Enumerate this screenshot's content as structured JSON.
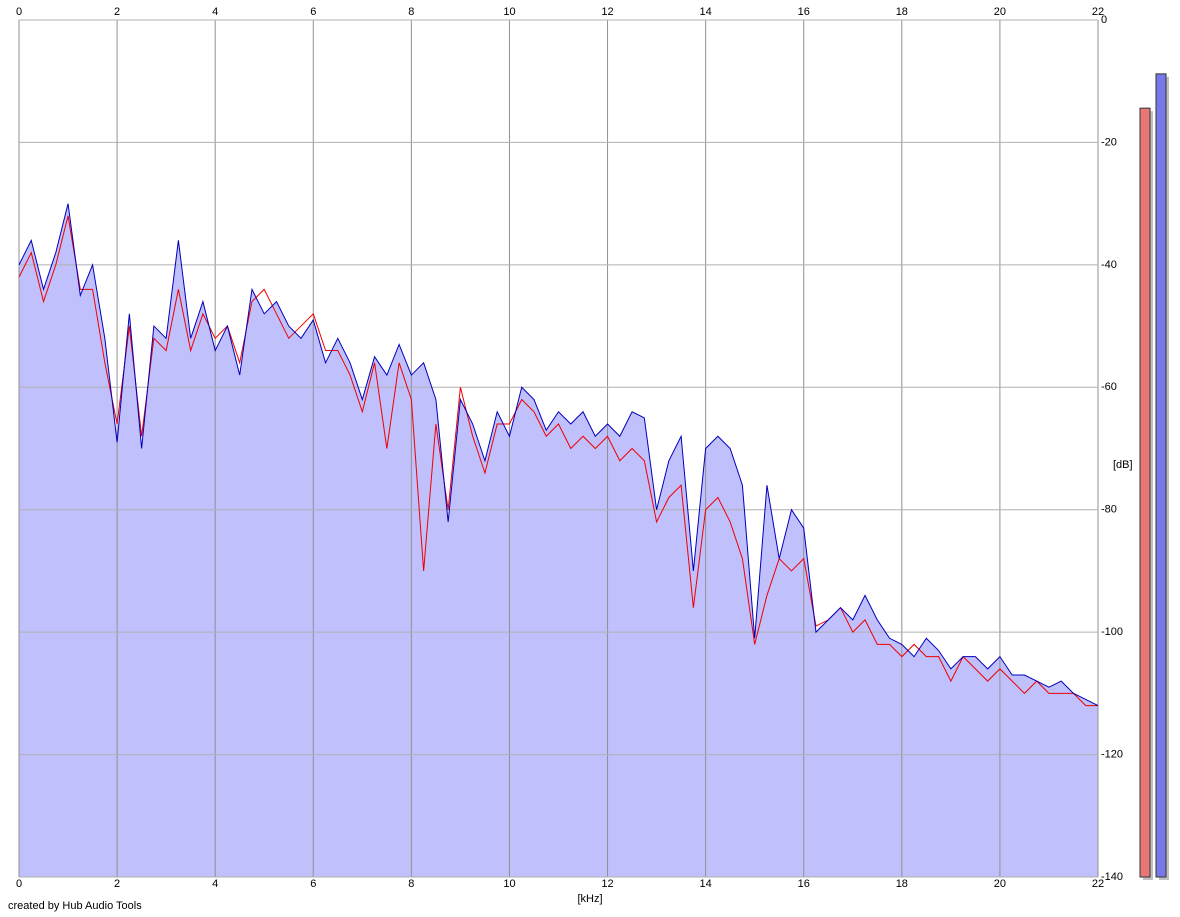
{
  "chart_data": {
    "type": "spectrum",
    "xlabel": "[kHz]",
    "ylabel": "[dB]",
    "credit": "created by Hub Audio Tools",
    "xlim": [
      0,
      22
    ],
    "xticks": [
      0,
      2,
      4,
      6,
      8,
      10,
      12,
      14,
      16,
      18,
      20,
      22
    ],
    "ylim": [
      -140,
      0
    ],
    "yticks": [
      0,
      -20,
      -40,
      -60,
      -80,
      -100,
      -120,
      -140
    ],
    "grid": true,
    "fill": "#c0c0fc",
    "x": [
      0,
      0.25,
      0.5,
      0.75,
      1,
      1.25,
      1.5,
      1.75,
      2,
      2.25,
      2.5,
      2.75,
      3,
      3.25,
      3.5,
      3.75,
      4,
      4.25,
      4.5,
      4.75,
      5,
      5.25,
      5.5,
      5.75,
      6,
      6.25,
      6.5,
      6.75,
      7,
      7.25,
      7.5,
      7.75,
      8,
      8.25,
      8.5,
      8.75,
      9,
      9.25,
      9.5,
      9.75,
      10,
      10.25,
      10.5,
      10.75,
      11,
      11.25,
      11.5,
      11.75,
      12,
      12.25,
      12.5,
      12.75,
      13,
      13.25,
      13.5,
      13.75,
      14,
      14.25,
      14.5,
      14.75,
      15,
      15.25,
      15.5,
      15.75,
      16,
      16.25,
      16.5,
      16.75,
      17,
      17.25,
      17.5,
      17.75,
      18,
      18.25,
      18.5,
      18.75,
      19,
      19.25,
      19.5,
      19.75,
      20,
      20.25,
      20.5,
      20.75,
      21,
      21.25,
      21.5,
      21.75,
      22
    ],
    "series": [
      {
        "color": "#ee0000",
        "values": [
          -42,
          -38,
          -46,
          -40,
          -32,
          -44,
          -44,
          -56,
          -66,
          -50,
          -68,
          -52,
          -54,
          -44,
          -54,
          -48,
          -52,
          -50,
          -56,
          -46,
          -44,
          -48,
          -52,
          -50,
          -48,
          -54,
          -54,
          -58,
          -64,
          -56,
          -70,
          -56,
          -62,
          -90,
          -66,
          -80,
          -60,
          -68,
          -74,
          -66,
          -66,
          -62,
          -64,
          -68,
          -66,
          -70,
          -68,
          -70,
          -68,
          -72,
          -70,
          -72,
          -82,
          -78,
          -76,
          -96,
          -80,
          -78,
          -82,
          -88,
          -102,
          -94,
          -88,
          -90,
          -88,
          -99,
          -98,
          -96,
          -100,
          -98,
          -102,
          -102,
          -104,
          -102,
          -104,
          -104,
          -108,
          -104,
          -106,
          -108,
          -106,
          -108,
          -110,
          -108,
          -110,
          -110,
          -110,
          -112,
          -112
        ]
      },
      {
        "color": "#0000bb",
        "values": [
          -40,
          -36,
          -44,
          -38,
          -30,
          -45,
          -40,
          -52,
          -69,
          -48,
          -70,
          -50,
          -52,
          -36,
          -52,
          -46,
          -54,
          -50,
          -58,
          -44,
          -48,
          -46,
          -50,
          -52,
          -49,
          -56,
          -52,
          -56,
          -62,
          -55,
          -58,
          -53,
          -58,
          -56,
          -62,
          -82,
          -62,
          -66,
          -72,
          -64,
          -68,
          -60,
          -62,
          -67,
          -64,
          -66,
          -64,
          -68,
          -66,
          -68,
          -64,
          -65,
          -80,
          -72,
          -68,
          -90,
          -70,
          -68,
          -70,
          -76,
          -101,
          -76,
          -88,
          -80,
          -83,
          -100,
          -98,
          -96,
          -98,
          -94,
          -98,
          -101,
          -102,
          -104,
          -101,
          -103,
          -106,
          -104,
          -104,
          -106,
          -104,
          -107,
          -107,
          -108,
          -109,
          -108,
          -110,
          -111,
          -112
        ]
      }
    ],
    "levels": [
      {
        "color": "#e87878",
        "value": -14.4
      },
      {
        "color": "#7878e8",
        "value": -8.8
      }
    ]
  }
}
